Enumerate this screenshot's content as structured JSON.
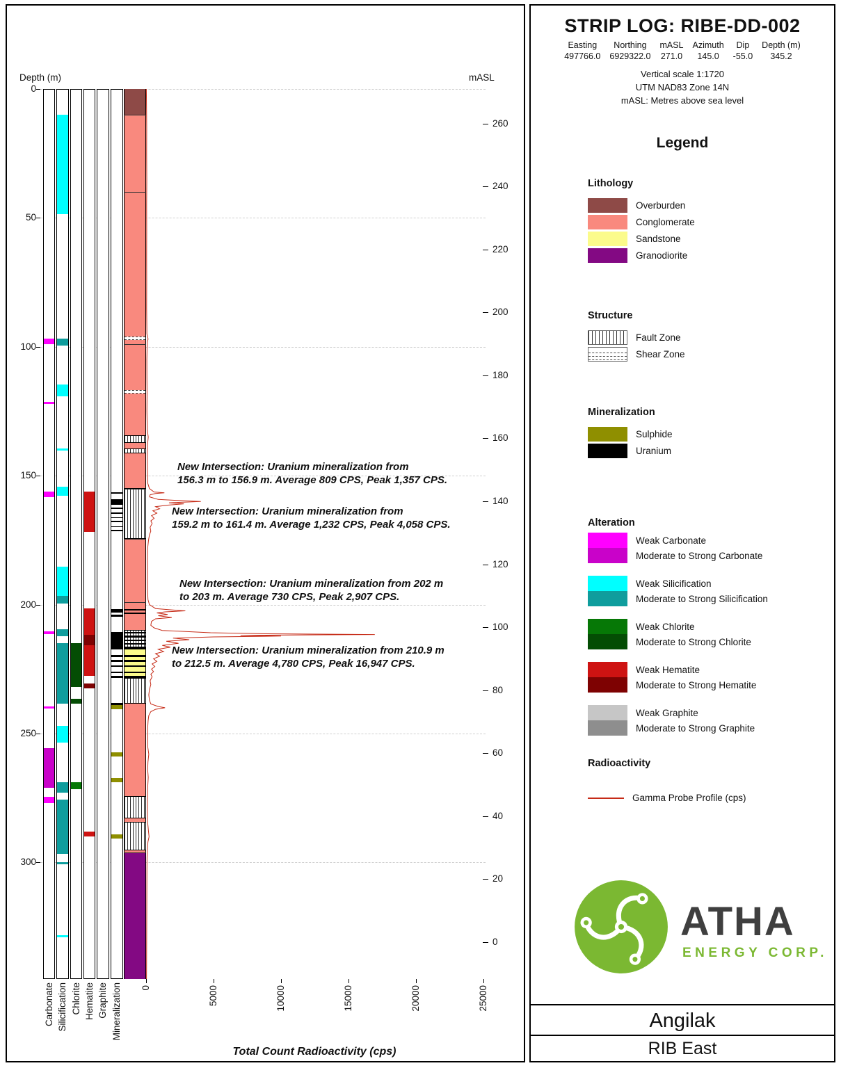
{
  "header": {
    "title": "STRIP LOG: RIBE-DD-002",
    "fields": [
      {
        "label": "Easting",
        "value": "497766.0"
      },
      {
        "label": "Northing",
        "value": "6929322.0"
      },
      {
        "label": "mASL",
        "value": "271.0"
      },
      {
        "label": "Azimuth",
        "value": "145.0"
      },
      {
        "label": "Dip",
        "value": "-55.0"
      },
      {
        "label": "Depth (m)",
        "value": "345.2"
      }
    ],
    "notes": [
      "Vertical scale 1:1720",
      "UTM NAD83 Zone 14N",
      "mASL: Metres above sea level"
    ]
  },
  "legend": {
    "title": "Legend",
    "sections": [
      {
        "title": "Lithology",
        "items": [
          {
            "label": "Overburden",
            "swatch": "overburden"
          },
          {
            "label": "Conglomerate",
            "swatch": "conglomerate"
          },
          {
            "label": "Sandstone",
            "swatch": "sandstone"
          },
          {
            "label": "Granodiorite",
            "swatch": "granodiorite"
          }
        ]
      },
      {
        "title": "Structure",
        "items": [
          {
            "label": "Fault Zone",
            "swatch": "fault"
          },
          {
            "label": "Shear Zone",
            "swatch": "shear"
          }
        ]
      },
      {
        "title": "Mineralization",
        "items": [
          {
            "label": "Sulphide",
            "swatch": "sulphide"
          },
          {
            "label": "Uranium",
            "swatch": "uranium"
          }
        ]
      },
      {
        "title": "Alteration",
        "pairs": true,
        "items": [
          {
            "label": "Weak Carbonate",
            "swatch": "carb_weak"
          },
          {
            "label": "Moderate to Strong Carbonate",
            "swatch": "carb_strong"
          },
          {
            "label": "Weak Silicification",
            "swatch": "sil_weak"
          },
          {
            "label": "Moderate to Strong Silicification",
            "swatch": "sil_strong"
          },
          {
            "label": "Weak Chlorite",
            "swatch": "chl_weak"
          },
          {
            "label": "Moderate to Strong Chlorite",
            "swatch": "chl_strong"
          },
          {
            "label": "Weak Hematite",
            "swatch": "hem_weak"
          },
          {
            "label": "Moderate to Strong Hematite",
            "swatch": "hem_strong"
          },
          {
            "label": "Weak Graphite",
            "swatch": "gra_weak"
          },
          {
            "label": "Moderate to Strong Graphite",
            "swatch": "gra_strong"
          }
        ]
      },
      {
        "title": "Radioactivity",
        "items": [
          {
            "label": "Gamma Probe Profile (cps)",
            "swatch": "gamma"
          }
        ]
      }
    ]
  },
  "logo": {
    "name": "ATHA",
    "subtitle": "ENERGY CORP."
  },
  "footer": {
    "project": "Angilak",
    "area": "RIB East"
  },
  "colors": {
    "overburden": "#8E4A47",
    "conglomerate": "#F9897E",
    "sandstone": "#FBFB8B",
    "granodiorite": "#830983",
    "sulphide": "#8F8F00",
    "uranium": "#000000",
    "carb_weak": "#FF00FF",
    "carb_strong": "#C902C9",
    "sil_weak": "#00FFFF",
    "sil_strong": "#0F9D9D",
    "chl_weak": "#067806",
    "chl_strong": "#044D04",
    "hem_weak": "#CE1312",
    "hem_strong": "#7E0202",
    "gra_weak": "#C6C6C6",
    "gra_strong": "#8E8E8E",
    "gamma": "#C62B17"
  },
  "annotations": [
    {
      "text": "New Intersection: Uranium mineralization from\n156.3 m to 156.9 m. Average 809 CPS, Peak 1,357 CPS."
    },
    {
      "text": "New Intersection: Uranium mineralization from\n159.2 m to 161.4 m. Average 1,232 CPS, Peak 4,058 CPS."
    },
    {
      "text": "New Intersection: Uranium mineralization from 202 m\nto 203 m. Average 730 CPS, Peak 2,907 CPS."
    },
    {
      "text": "New Intersection: Uranium mineralization from 210.9 m\nto 212.5 m. Average 4,780 CPS, Peak 16,947 CPS."
    }
  ],
  "chart_data": {
    "type": "striplog",
    "depth_axis": {
      "label": "Depth (m)",
      "min": 0,
      "max": 345.2,
      "ticks": [
        0,
        50,
        100,
        150,
        200,
        250,
        300
      ]
    },
    "masl_axis": {
      "label": "mASL",
      "collar": 271.0,
      "dip": -55.0,
      "ticks": [
        260,
        240,
        220,
        200,
        180,
        160,
        140,
        120,
        100,
        80,
        60,
        40,
        20,
        0
      ]
    },
    "radioactivity_axis": {
      "label": "Total Count Radioactivity (cps)",
      "min": 0,
      "max": 25000,
      "ticks": [
        0,
        5000,
        10000,
        15000,
        20000,
        25000
      ]
    },
    "columns": [
      {
        "name": "Carbonate",
        "intervals": [
          {
            "from": 96.8,
            "to": 99.0,
            "key": "carb_weak"
          },
          {
            "from": 121.4,
            "to": 122.2,
            "key": "carb_weak"
          },
          {
            "from": 156.2,
            "to": 158.2,
            "key": "carb_weak"
          },
          {
            "from": 210.4,
            "to": 211.4,
            "key": "carb_weak"
          },
          {
            "from": 239.6,
            "to": 240.2,
            "key": "carb_weak"
          },
          {
            "from": 255.7,
            "to": 271.0,
            "key": "carb_strong"
          },
          {
            "from": 274.6,
            "to": 277.0,
            "key": "carb_weak"
          }
        ]
      },
      {
        "name": "Silicification",
        "intervals": [
          {
            "from": 10.0,
            "to": 48.5,
            "key": "sil_weak"
          },
          {
            "from": 96.8,
            "to": 99.5,
            "key": "sil_strong"
          },
          {
            "from": 114.6,
            "to": 119.2,
            "key": "sil_weak"
          },
          {
            "from": 139.4,
            "to": 140.2,
            "key": "sil_weak"
          },
          {
            "from": 154.3,
            "to": 157.8,
            "key": "sil_weak"
          },
          {
            "from": 185.3,
            "to": 196.6,
            "key": "sil_weak"
          },
          {
            "from": 196.6,
            "to": 199.6,
            "key": "sil_strong"
          },
          {
            "from": 209.6,
            "to": 212.3,
            "key": "sil_strong"
          },
          {
            "from": 215.0,
            "to": 238.4,
            "key": "sil_strong"
          },
          {
            "from": 247.0,
            "to": 253.5,
            "key": "sil_weak"
          },
          {
            "from": 268.9,
            "to": 273.0,
            "key": "sil_strong"
          },
          {
            "from": 275.6,
            "to": 296.7,
            "key": "sil_strong"
          },
          {
            "from": 299.9,
            "to": 300.8,
            "key": "sil_strong"
          },
          {
            "from": 328.2,
            "to": 329.0,
            "key": "sil_weak"
          }
        ]
      },
      {
        "name": "Chlorite",
        "intervals": [
          {
            "from": 215.0,
            "to": 232.0,
            "key": "chl_strong"
          },
          {
            "from": 236.5,
            "to": 238.4,
            "key": "chl_strong"
          },
          {
            "from": 268.9,
            "to": 271.5,
            "key": "chl_weak"
          }
        ]
      },
      {
        "name": "Hematite",
        "intervals": [
          {
            "from": 156.2,
            "to": 171.8,
            "key": "hem_weak"
          },
          {
            "from": 201.5,
            "to": 211.7,
            "key": "hem_weak"
          },
          {
            "from": 211.7,
            "to": 215.8,
            "key": "hem_strong"
          },
          {
            "from": 215.8,
            "to": 227.6,
            "key": "hem_weak"
          },
          {
            "from": 230.6,
            "to": 232.5,
            "key": "hem_strong"
          },
          {
            "from": 288.0,
            "to": 289.8,
            "key": "hem_weak"
          }
        ]
      },
      {
        "name": "Graphite",
        "intervals": []
      },
      {
        "name": "Mineralization",
        "intervals": [
          {
            "from": 156.3,
            "to": 157.0,
            "key": "uranium"
          },
          {
            "from": 159.2,
            "to": 161.4,
            "key": "uranium"
          },
          {
            "from": 162.3,
            "to": 163.0,
            "key": "uranium"
          },
          {
            "from": 164.2,
            "to": 164.8,
            "key": "uranium"
          },
          {
            "from": 166.0,
            "to": 166.5,
            "key": "uranium"
          },
          {
            "from": 167.5,
            "to": 168.0,
            "key": "uranium"
          },
          {
            "from": 169.5,
            "to": 170.0,
            "key": "uranium"
          },
          {
            "from": 171.0,
            "to": 171.6,
            "key": "uranium"
          },
          {
            "from": 201.8,
            "to": 203.2,
            "key": "uranium"
          },
          {
            "from": 204.0,
            "to": 204.6,
            "key": "uranium"
          },
          {
            "from": 210.5,
            "to": 217.5,
            "key": "uranium"
          },
          {
            "from": 219.5,
            "to": 220.3,
            "key": "uranium"
          },
          {
            "from": 221.5,
            "to": 222.2,
            "key": "uranium"
          },
          {
            "from": 223.5,
            "to": 224.2,
            "key": "uranium"
          },
          {
            "from": 226.0,
            "to": 226.6,
            "key": "uranium"
          },
          {
            "from": 227.5,
            "to": 228.3,
            "key": "uranium"
          },
          {
            "from": 238.0,
            "to": 239.0,
            "key": "uranium"
          },
          {
            "from": 239.0,
            "to": 240.6,
            "key": "sulphide"
          },
          {
            "from": 257.2,
            "to": 258.8,
            "key": "sulphide"
          },
          {
            "from": 267.2,
            "to": 268.8,
            "key": "sulphide"
          },
          {
            "from": 289.0,
            "to": 290.8,
            "key": "sulphide"
          }
        ]
      }
    ],
    "lithology": {
      "intervals": [
        {
          "from": 0,
          "to": 10,
          "key": "overburden",
          "unit": "Overburden"
        },
        {
          "from": 10,
          "to": 217.5,
          "key": "conglomerate",
          "unit": "Conglomerate"
        },
        {
          "from": 217.5,
          "to": 228.5,
          "key": "sandstone",
          "unit": "Sandstone"
        },
        {
          "from": 228.5,
          "to": 296.0,
          "key": "conglomerate",
          "unit": "Conglomerate"
        },
        {
          "from": 296.0,
          "to": 345.2,
          "key": "granodiorite",
          "unit": "Granodiorite"
        }
      ],
      "structures": [
        {
          "from": 96.0,
          "to": 97.3,
          "type": "shear"
        },
        {
          "from": 116.8,
          "to": 118.0,
          "type": "shear"
        },
        {
          "from": 134.3,
          "to": 137.3,
          "type": "fault"
        },
        {
          "from": 139.3,
          "to": 141.3,
          "type": "fault"
        },
        {
          "from": 154.8,
          "to": 174.5,
          "type": "fault"
        },
        {
          "from": 209.8,
          "to": 217.5,
          "type": "fault"
        },
        {
          "from": 228.5,
          "to": 238.5,
          "type": "fault"
        },
        {
          "from": 274.3,
          "to": 283.0,
          "type": "fault"
        },
        {
          "from": 284.2,
          "to": 295.3,
          "type": "fault"
        }
      ],
      "uranium_bands": [
        [
          201.8,
          202.4
        ],
        [
          203.0,
          203.5
        ],
        [
          210.5,
          211.2
        ],
        [
          212.0,
          212.8
        ],
        [
          213.5,
          214.2
        ],
        [
          215.0,
          215.6
        ],
        [
          216.3,
          217.0
        ],
        [
          219.5,
          220.3
        ],
        [
          221.5,
          222.2
        ],
        [
          223.5,
          224.2
        ],
        [
          226.0,
          226.6
        ],
        [
          227.5,
          228.3
        ]
      ],
      "contacts": [
        10,
        40,
        99,
        155,
        174.5,
        199,
        296
      ]
    },
    "gamma_profile": {
      "units": "cps",
      "points": [
        [
          0,
          20
        ],
        [
          8,
          35
        ],
        [
          15,
          45
        ],
        [
          25,
          40
        ],
        [
          35,
          50
        ],
        [
          45,
          40
        ],
        [
          55,
          45
        ],
        [
          65,
          40
        ],
        [
          75,
          45
        ],
        [
          85,
          40
        ],
        [
          95,
          60
        ],
        [
          97,
          150
        ],
        [
          98,
          80
        ],
        [
          105,
          55
        ],
        [
          112,
          60
        ],
        [
          118,
          70
        ],
        [
          125,
          60
        ],
        [
          132,
          90
        ],
        [
          135,
          160
        ],
        [
          138,
          110
        ],
        [
          142,
          90
        ],
        [
          148,
          100
        ],
        [
          153,
          130
        ],
        [
          155,
          250
        ],
        [
          156.3,
          600
        ],
        [
          156.6,
          1357
        ],
        [
          156.9,
          700
        ],
        [
          157.4,
          300
        ],
        [
          158.2,
          260
        ],
        [
          159.2,
          900
        ],
        [
          159.6,
          2400
        ],
        [
          160,
          4058
        ],
        [
          160.5,
          1700
        ],
        [
          160.9,
          2800
        ],
        [
          161.4,
          1600
        ],
        [
          162,
          700
        ],
        [
          162.8,
          1000
        ],
        [
          163.6,
          500
        ],
        [
          164.5,
          800
        ],
        [
          165.5,
          400
        ],
        [
          166.5,
          600
        ],
        [
          167.5,
          350
        ],
        [
          168.5,
          450
        ],
        [
          170,
          300
        ],
        [
          171.5,
          350
        ],
        [
          173,
          250
        ],
        [
          175,
          180
        ],
        [
          178,
          120
        ],
        [
          182,
          100
        ],
        [
          186,
          110
        ],
        [
          190,
          100
        ],
        [
          194,
          110
        ],
        [
          198,
          140
        ],
        [
          200,
          250
        ],
        [
          201.5,
          700
        ],
        [
          202,
          1800
        ],
        [
          202.4,
          2907
        ],
        [
          202.8,
          1400
        ],
        [
          203.2,
          800
        ],
        [
          203.8,
          1600
        ],
        [
          204.3,
          900
        ],
        [
          205,
          1900
        ],
        [
          205.5,
          700
        ],
        [
          206.5,
          400
        ],
        [
          208,
          350
        ],
        [
          209,
          600
        ],
        [
          210,
          1200
        ],
        [
          210.9,
          4780
        ],
        [
          211.3,
          9000
        ],
        [
          211.6,
          16947
        ],
        [
          211.9,
          7000
        ],
        [
          212.2,
          10000
        ],
        [
          212.5,
          5000
        ],
        [
          213,
          2000
        ],
        [
          213.6,
          3200
        ],
        [
          214.2,
          1500
        ],
        [
          215,
          2400
        ],
        [
          215.8,
          1200
        ],
        [
          216.5,
          1800
        ],
        [
          217.3,
          900
        ],
        [
          218.2,
          1300
        ],
        [
          219,
          700
        ],
        [
          220,
          1000
        ],
        [
          221,
          550
        ],
        [
          222,
          800
        ],
        [
          223,
          450
        ],
        [
          224,
          650
        ],
        [
          225,
          400
        ],
        [
          226,
          550
        ],
        [
          227,
          350
        ],
        [
          228,
          450
        ],
        [
          229.5,
          300
        ],
        [
          231,
          350
        ],
        [
          233,
          250
        ],
        [
          235,
          200
        ],
        [
          237,
          250
        ],
        [
          238.5,
          350
        ],
        [
          239.5,
          900
        ],
        [
          240,
          1400
        ],
        [
          240.6,
          700
        ],
        [
          241.5,
          350
        ],
        [
          243,
          200
        ],
        [
          245,
          150
        ],
        [
          248,
          120
        ],
        [
          252,
          130
        ],
        [
          255,
          120
        ],
        [
          258,
          200
        ],
        [
          261,
          140
        ],
        [
          264,
          120
        ],
        [
          267,
          160
        ],
        [
          270,
          130
        ],
        [
          273,
          120
        ],
        [
          276,
          110
        ],
        [
          280,
          100
        ],
        [
          284,
          110
        ],
        [
          288,
          180
        ],
        [
          290,
          220
        ],
        [
          292,
          140
        ],
        [
          295,
          100
        ],
        [
          298,
          70
        ],
        [
          303,
          60
        ],
        [
          310,
          55
        ],
        [
          318,
          50
        ],
        [
          326,
          45
        ],
        [
          334,
          40
        ],
        [
          342,
          35
        ],
        [
          345.2,
          30
        ]
      ]
    }
  }
}
